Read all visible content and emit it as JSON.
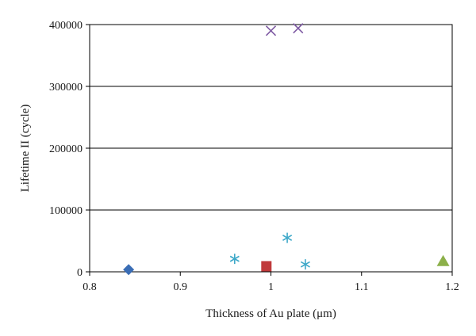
{
  "chart_data": {
    "type": "scatter",
    "title": "",
    "xlabel": "Thickness of Au plate (μm)",
    "ylabel": "Lifetime II (cycle)",
    "xlim": [
      0.8,
      1.2
    ],
    "ylim": [
      0,
      400000
    ],
    "x_ticks": [
      0.8,
      0.9,
      1.0,
      1.1,
      1.2
    ],
    "x_tick_labels": [
      "0.8",
      "0.9",
      "1",
      "1.1",
      "1.2"
    ],
    "y_ticks": [
      0,
      100000,
      200000,
      300000,
      400000
    ],
    "y_tick_labels": [
      "0",
      "100000",
      "200000",
      "300000",
      "400000"
    ],
    "grid": "horizontal",
    "legend": "none",
    "series": [
      {
        "marker": "diamond",
        "color": "#3a6db5",
        "points": [
          {
            "x": 0.843,
            "y": 3500
          }
        ]
      },
      {
        "marker": "square",
        "color": "#c0393b",
        "points": [
          {
            "x": 0.995,
            "y": 9000
          }
        ]
      },
      {
        "marker": "triangle",
        "color": "#8cb04a",
        "points": [
          {
            "x": 1.19,
            "y": 17000
          }
        ]
      },
      {
        "marker": "x",
        "color": "#7e5aa3",
        "points": [
          {
            "x": 1.0,
            "y": 390000
          },
          {
            "x": 1.03,
            "y": 394000
          }
        ]
      },
      {
        "marker": "asterisk",
        "color": "#3fa9c9",
        "points": [
          {
            "x": 0.96,
            "y": 21000
          },
          {
            "x": 1.018,
            "y": 55000
          },
          {
            "x": 1.038,
            "y": 12000
          }
        ]
      }
    ]
  }
}
